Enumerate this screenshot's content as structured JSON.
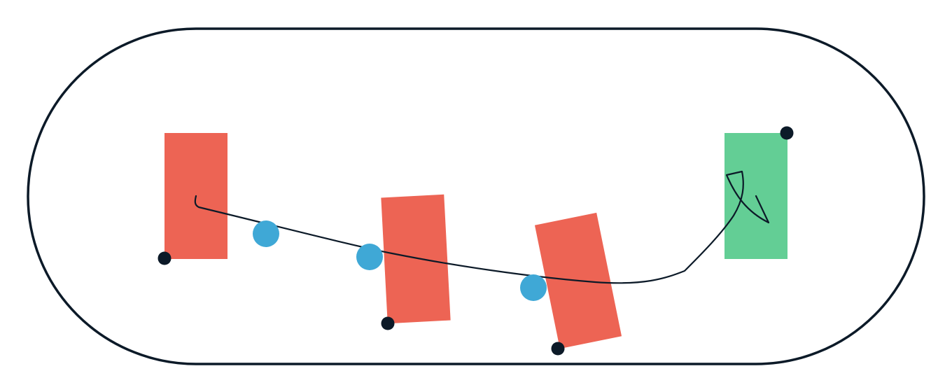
{
  "colors": {
    "outline": "#0c1a28",
    "obstacle": "#ed6454",
    "goal": "#63ce95",
    "waypoint": "#3fa8d6",
    "anchor": "#0c1a28",
    "path": "#0c1a28",
    "background": "#ffffff"
  },
  "scene": {
    "track": {
      "shape": "stadium"
    },
    "obstacles": [
      {
        "name": "obstacle-1"
      },
      {
        "name": "obstacle-2"
      },
      {
        "name": "obstacle-3"
      }
    ],
    "goal": {
      "name": "goal-zone"
    },
    "waypoints": [
      {
        "name": "waypoint-1"
      },
      {
        "name": "waypoint-2"
      },
      {
        "name": "waypoint-3"
      }
    ],
    "anchors": [
      {
        "name": "anchor-obstacle-1"
      },
      {
        "name": "anchor-obstacle-2"
      },
      {
        "name": "anchor-obstacle-3"
      },
      {
        "name": "anchor-goal"
      }
    ],
    "path": {
      "name": "trajectory-path"
    }
  }
}
